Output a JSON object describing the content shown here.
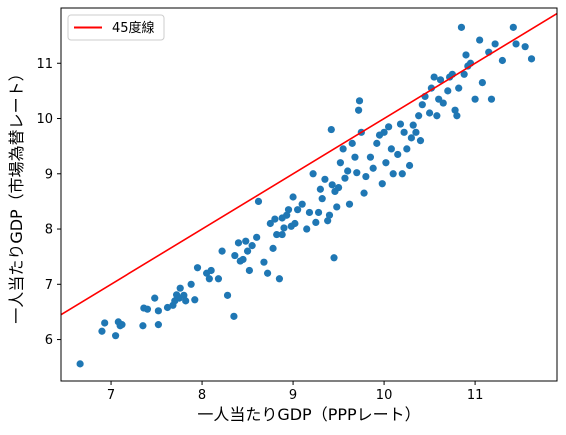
{
  "chart_data": {
    "type": "scatter",
    "xlabel": "一人当たりGDP（PPPレート）",
    "ylabel": "一人当たりGDP（市場為替レート）",
    "xlim": [
      6.45,
      11.9
    ],
    "ylim": [
      5.25,
      12.0
    ],
    "xticks": [
      7,
      8,
      9,
      10,
      11
    ],
    "yticks": [
      6,
      7,
      8,
      9,
      10,
      11
    ],
    "grid": false,
    "legend": {
      "placement": "top-left",
      "entries": [
        "45度線"
      ]
    },
    "colors": {
      "points": "#1f77b4",
      "line": "#ff0000"
    },
    "reference_line": {
      "name": "45度線",
      "slope": 1,
      "intercept": 0
    },
    "points": [
      [
        6.66,
        5.56
      ],
      [
        6.9,
        6.15
      ],
      [
        6.93,
        6.3
      ],
      [
        7.05,
        6.07
      ],
      [
        7.08,
        6.32
      ],
      [
        7.1,
        6.25
      ],
      [
        7.12,
        6.27
      ],
      [
        7.35,
        6.25
      ],
      [
        7.36,
        6.57
      ],
      [
        7.4,
        6.55
      ],
      [
        7.48,
        6.75
      ],
      [
        7.52,
        6.27
      ],
      [
        7.52,
        6.52
      ],
      [
        7.62,
        6.58
      ],
      [
        7.68,
        6.62
      ],
      [
        7.7,
        6.7
      ],
      [
        7.72,
        6.81
      ],
      [
        7.75,
        6.75
      ],
      [
        7.76,
        6.93
      ],
      [
        7.8,
        6.8
      ],
      [
        7.82,
        6.7
      ],
      [
        7.88,
        7.0
      ],
      [
        7.92,
        6.72
      ],
      [
        7.95,
        7.3
      ],
      [
        8.05,
        7.2
      ],
      [
        8.08,
        7.1
      ],
      [
        8.1,
        7.25
      ],
      [
        8.18,
        7.1
      ],
      [
        8.22,
        7.6
      ],
      [
        8.28,
        6.8
      ],
      [
        8.35,
        6.42
      ],
      [
        8.36,
        7.52
      ],
      [
        8.4,
        7.75
      ],
      [
        8.42,
        7.42
      ],
      [
        8.45,
        7.45
      ],
      [
        8.48,
        7.78
      ],
      [
        8.5,
        7.6
      ],
      [
        8.52,
        7.25
      ],
      [
        8.55,
        7.7
      ],
      [
        8.6,
        7.85
      ],
      [
        8.62,
        8.5
      ],
      [
        8.68,
        7.4
      ],
      [
        8.72,
        7.2
      ],
      [
        8.75,
        8.1
      ],
      [
        8.78,
        7.65
      ],
      [
        8.8,
        8.18
      ],
      [
        8.82,
        7.9
      ],
      [
        8.85,
        7.1
      ],
      [
        8.88,
        8.2
      ],
      [
        8.88,
        7.9
      ],
      [
        8.9,
        8.02
      ],
      [
        8.93,
        8.25
      ],
      [
        8.95,
        8.35
      ],
      [
        8.98,
        8.05
      ],
      [
        9.0,
        8.58
      ],
      [
        9.02,
        8.1
      ],
      [
        9.05,
        8.35
      ],
      [
        9.1,
        8.45
      ],
      [
        9.15,
        8.0
      ],
      [
        9.18,
        8.3
      ],
      [
        9.22,
        9.0
      ],
      [
        9.25,
        8.12
      ],
      [
        9.28,
        8.3
      ],
      [
        9.3,
        8.72
      ],
      [
        9.32,
        8.55
      ],
      [
        9.35,
        8.9
      ],
      [
        9.38,
        8.15
      ],
      [
        9.4,
        8.25
      ],
      [
        9.42,
        9.8
      ],
      [
        9.43,
        8.8
      ],
      [
        9.45,
        7.48
      ],
      [
        9.46,
        8.68
      ],
      [
        9.48,
        8.4
      ],
      [
        9.5,
        8.75
      ],
      [
        9.52,
        9.2
      ],
      [
        9.55,
        9.45
      ],
      [
        9.57,
        8.92
      ],
      [
        9.6,
        9.05
      ],
      [
        9.62,
        8.45
      ],
      [
        9.65,
        9.55
      ],
      [
        9.68,
        9.3
      ],
      [
        9.7,
        9.02
      ],
      [
        9.72,
        10.15
      ],
      [
        9.73,
        10.32
      ],
      [
        9.75,
        9.75
      ],
      [
        9.78,
        8.65
      ],
      [
        9.8,
        8.95
      ],
      [
        9.85,
        9.3
      ],
      [
        9.88,
        9.1
      ],
      [
        9.92,
        9.55
      ],
      [
        9.95,
        9.7
      ],
      [
        9.98,
        8.82
      ],
      [
        10.0,
        9.75
      ],
      [
        10.02,
        9.2
      ],
      [
        10.05,
        9.85
      ],
      [
        10.08,
        9.45
      ],
      [
        10.1,
        9.0
      ],
      [
        10.15,
        9.35
      ],
      [
        10.18,
        9.9
      ],
      [
        10.2,
        9.0
      ],
      [
        10.22,
        9.75
      ],
      [
        10.25,
        9.45
      ],
      [
        10.28,
        9.15
      ],
      [
        10.3,
        9.65
      ],
      [
        10.32,
        9.88
      ],
      [
        10.35,
        9.75
      ],
      [
        10.38,
        10.05
      ],
      [
        10.4,
        9.6
      ],
      [
        10.42,
        10.25
      ],
      [
        10.45,
        10.4
      ],
      [
        10.5,
        10.1
      ],
      [
        10.52,
        10.55
      ],
      [
        10.55,
        10.75
      ],
      [
        10.58,
        10.05
      ],
      [
        10.6,
        10.35
      ],
      [
        10.62,
        10.7
      ],
      [
        10.65,
        10.28
      ],
      [
        10.7,
        10.5
      ],
      [
        10.72,
        10.75
      ],
      [
        10.75,
        10.8
      ],
      [
        10.78,
        10.15
      ],
      [
        10.8,
        10.05
      ],
      [
        10.82,
        10.55
      ],
      [
        10.85,
        11.65
      ],
      [
        10.88,
        10.8
      ],
      [
        10.9,
        11.15
      ],
      [
        10.92,
        10.95
      ],
      [
        10.95,
        11.0
      ],
      [
        11.0,
        10.35
      ],
      [
        11.05,
        11.42
      ],
      [
        11.08,
        10.65
      ],
      [
        11.15,
        11.2
      ],
      [
        11.18,
        10.35
      ],
      [
        11.22,
        11.35
      ],
      [
        11.3,
        11.05
      ],
      [
        11.42,
        11.65
      ],
      [
        11.45,
        11.35
      ],
      [
        11.55,
        11.3
      ],
      [
        11.62,
        11.08
      ]
    ]
  }
}
